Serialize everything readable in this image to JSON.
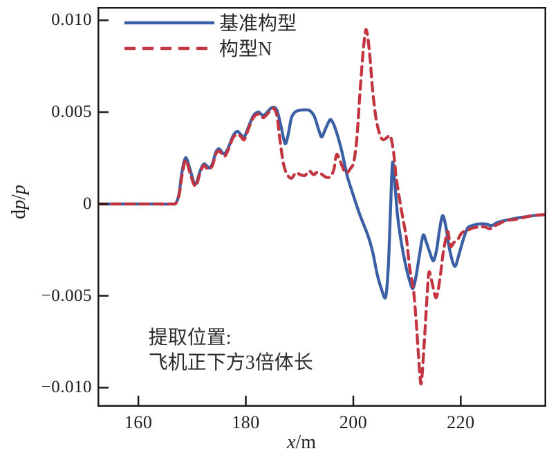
{
  "chart_data": {
    "type": "line",
    "title": "",
    "xlabel": "x/m",
    "ylabel": "dp/p",
    "xlim": [
      152.4,
      235.9
    ],
    "ylim": [
      -0.01104,
      0.01073
    ],
    "x_ticks": [
      160,
      180,
      200,
      220
    ],
    "x_tick_labels": [
      "160",
      "180",
      "200",
      "220"
    ],
    "y_ticks": [
      0.01,
      0.005,
      0,
      -0.005,
      -0.01
    ],
    "y_tick_labels": [
      "0.010",
      "0.005",
      "0",
      "−0.005",
      "−0.010"
    ],
    "grid": false,
    "legend_position": "top-left",
    "axis_color": "#1a1a1a",
    "text_color": "#1f1f1f",
    "annotation": {
      "lines": [
        "提取位置:",
        "飞机正下方3倍体长"
      ],
      "x": 161.9,
      "color": "#2b2b2b"
    },
    "series": [
      {
        "name": "基准构型",
        "color": "#3a5fa5",
        "style": "solid",
        "points": [
          [
            152.4,
            0
          ],
          [
            156,
            0
          ],
          [
            160,
            0
          ],
          [
            163,
            0
          ],
          [
            166,
            0
          ],
          [
            167.0,
            5e-05
          ],
          [
            167.6,
            0.0006
          ],
          [
            168.1,
            0.0017
          ],
          [
            168.8,
            0.00252
          ],
          [
            169.6,
            0.0019
          ],
          [
            170.3,
            0.0012
          ],
          [
            170.8,
            0.00113
          ],
          [
            171.5,
            0.0018
          ],
          [
            172.2,
            0.00218
          ],
          [
            172.8,
            0.00205
          ],
          [
            173.2,
            0.00196
          ],
          [
            173.8,
            0.0022
          ],
          [
            174.4,
            0.0028
          ],
          [
            175.0,
            0.00301
          ],
          [
            175.6,
            0.0028
          ],
          [
            176.1,
            0.00275
          ],
          [
            176.8,
            0.0031
          ],
          [
            177.6,
            0.0037
          ],
          [
            178.4,
            0.00395
          ],
          [
            179.0,
            0.0038
          ],
          [
            179.7,
            0.00365
          ],
          [
            180.5,
            0.0042
          ],
          [
            181.4,
            0.0048
          ],
          [
            182.3,
            0.00501
          ],
          [
            182.8,
            0.0049
          ],
          [
            183.3,
            0.00482
          ],
          [
            184.0,
            0.005
          ],
          [
            184.6,
            0.0052
          ],
          [
            185.2,
            0.00527
          ],
          [
            185.8,
            0.0051
          ],
          [
            186.5,
            0.0043
          ],
          [
            187.0,
            0.0036
          ],
          [
            187.4,
            0.00328
          ],
          [
            187.9,
            0.0038
          ],
          [
            188.5,
            0.0047
          ],
          [
            189.2,
            0.00501
          ],
          [
            190.0,
            0.0051
          ],
          [
            190.9,
            0.00512
          ],
          [
            191.8,
            0.0051
          ],
          [
            192.7,
            0.0048
          ],
          [
            193.5,
            0.0041
          ],
          [
            194.1,
            0.00365
          ],
          [
            194.7,
            0.004
          ],
          [
            195.3,
            0.0044
          ],
          [
            195.8,
            0.0046
          ],
          [
            196.4,
            0.0043
          ],
          [
            197.1,
            0.0037
          ],
          [
            197.9,
            0.00283
          ],
          [
            198.9,
            0.0015
          ],
          [
            199.9,
            0.00057
          ],
          [
            201.2,
            -0.00057
          ],
          [
            202.7,
            -0.0017
          ],
          [
            203.6,
            -0.0026
          ],
          [
            204.4,
            -0.00377
          ],
          [
            205.2,
            -0.0046
          ],
          [
            206.0,
            -0.00508
          ],
          [
            206.5,
            -0.0035
          ],
          [
            206.9,
            -0.0005
          ],
          [
            207.3,
            0.00226
          ],
          [
            207.8,
            0.0008
          ],
          [
            208.3,
            -0.0008
          ],
          [
            209.0,
            -0.0022
          ],
          [
            209.8,
            -0.0034
          ],
          [
            210.5,
            -0.0042
          ],
          [
            211.1,
            -0.0046
          ],
          [
            211.7,
            -0.0039
          ],
          [
            212.3,
            -0.0028
          ],
          [
            213.0,
            -0.0017
          ],
          [
            213.6,
            -0.0021
          ],
          [
            214.2,
            -0.0026
          ],
          [
            214.9,
            -0.0031
          ],
          [
            215.5,
            -0.0025
          ],
          [
            216.0,
            -0.0015
          ],
          [
            216.6,
            -0.00064
          ],
          [
            217.2,
            -0.0012
          ],
          [
            218.0,
            -0.0026
          ],
          [
            218.9,
            -0.0034
          ],
          [
            219.7,
            -0.0027
          ],
          [
            220.5,
            -0.0019
          ],
          [
            221.3,
            -0.0013
          ],
          [
            222.1,
            -0.00118
          ],
          [
            223.0,
            -0.0011
          ],
          [
            224.0,
            -0.00108
          ],
          [
            224.9,
            -0.0011
          ],
          [
            225.7,
            -0.00118
          ],
          [
            226.9,
            -0.001
          ],
          [
            228.2,
            -0.0009
          ],
          [
            229.5,
            -0.00082
          ],
          [
            231.0,
            -0.00074
          ],
          [
            232.5,
            -0.00068
          ],
          [
            234.0,
            -0.00062
          ],
          [
            235.9,
            -0.00058
          ]
        ]
      },
      {
        "name": "构型N",
        "color": "#c23540",
        "style": "dashed",
        "points": [
          [
            152.4,
            0
          ],
          [
            156,
            0
          ],
          [
            160,
            0
          ],
          [
            163,
            0
          ],
          [
            166,
            0
          ],
          [
            167.0,
            5e-05
          ],
          [
            167.6,
            0.0005
          ],
          [
            168.1,
            0.0015
          ],
          [
            168.8,
            0.0024
          ],
          [
            169.6,
            0.0017
          ],
          [
            170.3,
            0.0011
          ],
          [
            170.8,
            0.001
          ],
          [
            171.5,
            0.0017
          ],
          [
            172.2,
            0.0021
          ],
          [
            172.8,
            0.0019
          ],
          [
            173.2,
            0.0019
          ],
          [
            173.8,
            0.0021
          ],
          [
            174.4,
            0.0027
          ],
          [
            175.0,
            0.0029
          ],
          [
            175.6,
            0.0027
          ],
          [
            176.1,
            0.0026
          ],
          [
            176.8,
            0.003
          ],
          [
            177.6,
            0.0036
          ],
          [
            178.4,
            0.0038
          ],
          [
            179.0,
            0.0037
          ],
          [
            179.7,
            0.0035
          ],
          [
            180.5,
            0.0041
          ],
          [
            181.4,
            0.0047
          ],
          [
            182.3,
            0.0049
          ],
          [
            182.8,
            0.0048
          ],
          [
            183.3,
            0.0047
          ],
          [
            184.0,
            0.0049
          ],
          [
            184.6,
            0.0051
          ],
          [
            185.2,
            0.0052
          ],
          [
            185.8,
            0.0048
          ],
          [
            186.3,
            0.0036
          ],
          [
            187.0,
            0.0022
          ],
          [
            187.7,
            0.0016
          ],
          [
            188.5,
            0.0014
          ],
          [
            189.3,
            0.0017
          ],
          [
            190.1,
            0.0016
          ],
          [
            191.0,
            0.00155
          ],
          [
            191.8,
            0.0018
          ],
          [
            192.6,
            0.0016
          ],
          [
            193.4,
            0.00175
          ],
          [
            194.2,
            0.0016
          ],
          [
            195.0,
            0.00145
          ],
          [
            195.8,
            0.0015
          ],
          [
            196.4,
            0.0019
          ],
          [
            196.9,
            0.0027
          ],
          [
            197.6,
            0.0023
          ],
          [
            198.3,
            0.0018
          ],
          [
            198.8,
            0.0017
          ],
          [
            199.4,
            0.0019
          ],
          [
            200.1,
            0.0023
          ],
          [
            200.7,
            0.0037
          ],
          [
            201.3,
            0.0063
          ],
          [
            201.9,
            0.0085
          ],
          [
            202.4,
            0.0095
          ],
          [
            203.0,
            0.0083
          ],
          [
            203.6,
            0.0062
          ],
          [
            204.2,
            0.0047
          ],
          [
            204.9,
            0.0038
          ],
          [
            205.5,
            0.0035
          ],
          [
            206.2,
            0.0036
          ],
          [
            206.9,
            0.0037
          ],
          [
            207.5,
            0.0028
          ],
          [
            208.0,
            0.0014
          ],
          [
            208.7,
            0.0001
          ],
          [
            209.3,
            -0.0009
          ],
          [
            209.9,
            -0.0019
          ],
          [
            210.5,
            -0.0035
          ],
          [
            211.2,
            -0.0047
          ],
          [
            211.7,
            -0.0064
          ],
          [
            212.1,
            -0.0081
          ],
          [
            212.6,
            -0.0098
          ],
          [
            213.1,
            -0.008
          ],
          [
            213.5,
            -0.0061
          ],
          [
            213.8,
            -0.0047
          ],
          [
            214.1,
            -0.0037
          ],
          [
            214.6,
            -0.0042
          ],
          [
            215.4,
            -0.0051
          ],
          [
            216.1,
            -0.0041
          ],
          [
            216.7,
            -0.0027
          ],
          [
            217.2,
            -0.0019
          ],
          [
            217.6,
            -0.0015
          ],
          [
            218.1,
            -0.0023
          ],
          [
            218.7,
            -0.0021
          ],
          [
            219.4,
            -0.00195
          ],
          [
            220.1,
            -0.0016
          ],
          [
            220.8,
            -0.00148
          ],
          [
            221.5,
            -0.0014
          ],
          [
            222.3,
            -0.0013
          ],
          [
            223.4,
            -0.00125
          ],
          [
            224.5,
            -0.00125
          ],
          [
            225.4,
            -0.00135
          ],
          [
            226.3,
            -0.0012
          ],
          [
            227.3,
            -0.00105
          ],
          [
            228.5,
            -0.0009
          ],
          [
            230.0,
            -0.00085
          ],
          [
            231.5,
            -0.00075
          ],
          [
            233.0,
            -0.00065
          ],
          [
            234.5,
            -0.0006
          ],
          [
            235.9,
            -0.00058
          ]
        ]
      }
    ]
  }
}
